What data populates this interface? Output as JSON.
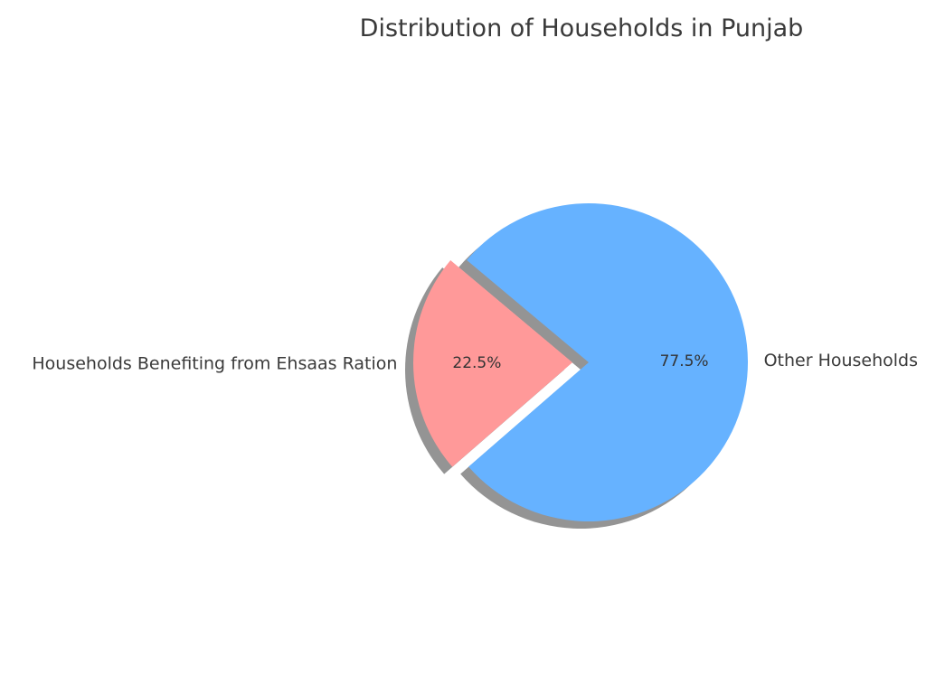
{
  "chart_data": {
    "type": "pie",
    "title": "Distribution of Households in Punjab",
    "categories": [
      "Households Benefiting from Ehsaas Ration",
      "Other Households"
    ],
    "values": [
      22.5,
      77.5
    ],
    "percent_labels": [
      "22.5%",
      "77.5%"
    ],
    "colors": [
      "#ff9999",
      "#66b2ff"
    ],
    "exploded": [
      true,
      false
    ],
    "shadow": true,
    "start_angle_deg": 140,
    "legend": "none"
  }
}
